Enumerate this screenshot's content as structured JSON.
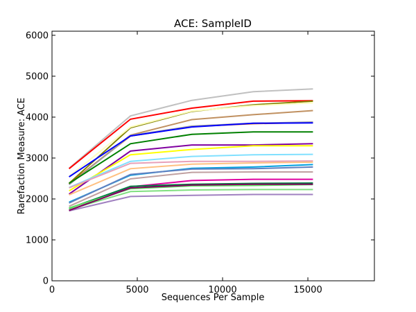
{
  "chart_data": {
    "type": "line",
    "title": "ACE: SampleID",
    "xlabel": "Sequences Per Sample",
    "ylabel": "Rarefaction Measure: ACE",
    "xlim": [
      0,
      18900
    ],
    "ylim": [
      0,
      6100
    ],
    "xticks": [
      0,
      5000,
      10000,
      15000
    ],
    "yticks": [
      0,
      1000,
      2000,
      3000,
      4000,
      5000,
      6000
    ],
    "grid": false,
    "legend": "none",
    "x": [
      1000,
      4600,
      8200,
      11800,
      15300
    ],
    "series": [
      {
        "color": "#c0c0c0",
        "values": [
          2750,
          4030,
          4410,
          4620,
          4690
        ]
      },
      {
        "color": "#ff0000",
        "values": [
          2740,
          3950,
          4220,
          4390,
          4400
        ]
      },
      {
        "color": "#808000",
        "values": [
          2380,
          3740,
          4140,
          4300,
          4390
        ]
      },
      {
        "color": "#ffffc0",
        "values": [
          2550,
          3760,
          4150,
          4280,
          4350
        ]
      },
      {
        "color": "#c09060",
        "values": [
          2360,
          3560,
          3940,
          4060,
          4160
        ]
      },
      {
        "color": "#e06000",
        "values": [
          2370,
          3540,
          3770,
          3840,
          3870
        ]
      },
      {
        "color": "#a0a0a0",
        "values": [
          2350,
          3550,
          3780,
          3850,
          3880
        ]
      },
      {
        "color": "#008000",
        "values": [
          2380,
          3350,
          3580,
          3640,
          3640
        ]
      },
      {
        "color": "#8000a0",
        "values": [
          2120,
          3170,
          3320,
          3320,
          3350
        ]
      },
      {
        "color": "#0000ff",
        "values": [
          2540,
          3540,
          3760,
          3850,
          3860
        ]
      },
      {
        "color": "#ffff00",
        "values": [
          2200,
          3080,
          3210,
          3300,
          3300
        ]
      },
      {
        "color": "#80e0ff",
        "values": [
          2280,
          2920,
          3040,
          3080,
          3090
        ]
      },
      {
        "color": "#e8a0b8",
        "values": [
          2270,
          2870,
          2920,
          2920,
          2930
        ]
      },
      {
        "color": "#ffc080",
        "values": [
          2100,
          2740,
          2850,
          2880,
          2900
        ]
      },
      {
        "color": "#00a0e0",
        "values": [
          1920,
          2580,
          2750,
          2780,
          2840
        ]
      },
      {
        "color": "#6080c0",
        "values": [
          1900,
          2600,
          2730,
          2740,
          2780
        ]
      },
      {
        "color": "#c0a0a0",
        "values": [
          1820,
          2490,
          2650,
          2660,
          2660
        ]
      },
      {
        "color": "#e000a0",
        "values": [
          1720,
          2300,
          2450,
          2480,
          2480
        ]
      },
      {
        "color": "#008040",
        "values": [
          1770,
          2310,
          2360,
          2380,
          2390
        ]
      },
      {
        "color": "#60e060",
        "values": [
          1780,
          2250,
          2320,
          2330,
          2350
        ]
      },
      {
        "color": "#80e080",
        "values": [
          1740,
          2180,
          2220,
          2230,
          2230
        ]
      },
      {
        "color": "#a080c0",
        "values": [
          1710,
          2060,
          2090,
          2110,
          2110
        ]
      },
      {
        "color": "#800060",
        "values": [
          1720,
          2270,
          2340,
          2360,
          2360
        ]
      }
    ]
  }
}
